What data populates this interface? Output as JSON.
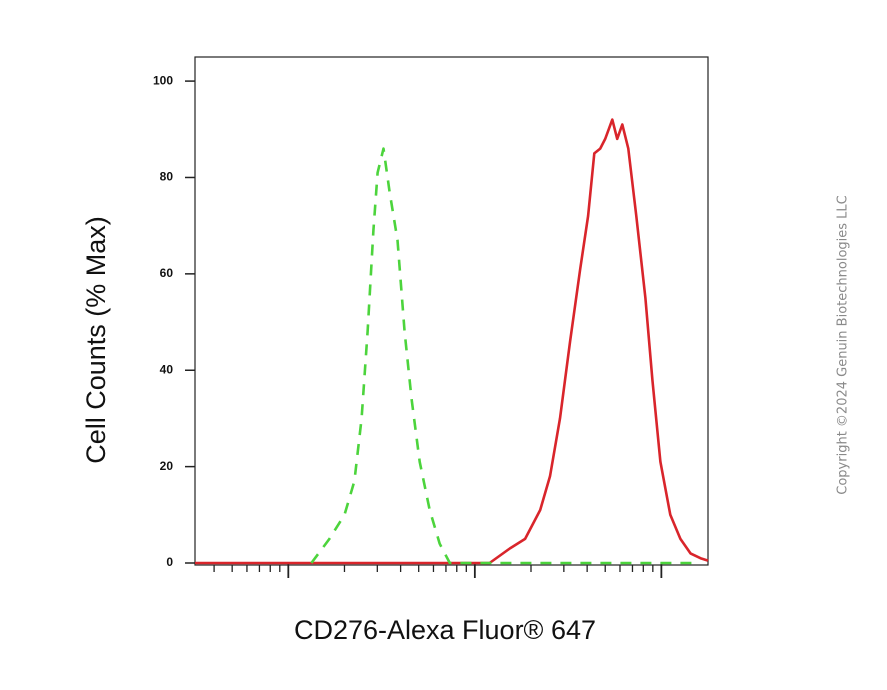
{
  "chart_data": {
    "type": "line",
    "ylabel": "Cell Counts (% Max)",
    "xlabel": "CD276-Alexa Fluor® 647",
    "xscale": "log",
    "xlim": [
      316,
      177828
    ],
    "xticks": [
      1000,
      10000,
      100000
    ],
    "xtick_labels": false,
    "minor_xticks": [
      400,
      500,
      600,
      700,
      800,
      900,
      2000,
      3000,
      4000,
      5000,
      6000,
      7000,
      8000,
      9000,
      20000,
      30000,
      40000,
      50000,
      60000,
      70000,
      80000,
      90000
    ],
    "ylim": [
      0,
      105
    ],
    "yticks": [
      0,
      20,
      40,
      60,
      80,
      100
    ],
    "series": [
      {
        "color": "#d9252b",
        "style": "solid",
        "x": [
          316,
          12000,
          15400,
          18600,
          22400,
          25300,
          28600,
          32400,
          36700,
          40500,
          43700,
          47000,
          50000,
          54600,
          58000,
          61700,
          66500,
          73400,
          82100,
          89500,
          98800,
          111700,
          126500,
          143200,
          162200,
          177828
        ],
        "values": [
          0,
          0,
          3,
          5,
          11,
          18,
          30,
          46,
          61,
          72,
          85,
          86,
          88,
          92,
          88,
          91,
          86,
          72,
          55,
          38,
          21,
          10,
          5,
          2,
          1,
          0.5
        ]
      },
      {
        "color": "#4cd43c",
        "style": "dashed",
        "x": [
          1330,
          1660,
          2000,
          2260,
          2470,
          2660,
          2860,
          3010,
          3240,
          3490,
          3850,
          4200,
          4580,
          5060,
          5730,
          6480,
          7340,
          162000
        ],
        "values": [
          0,
          5,
          10,
          17,
          30,
          48,
          69,
          81,
          86,
          77,
          67,
          48,
          34,
          21,
          11,
          4,
          0,
          0
        ]
      }
    ]
  },
  "copyright": "Copyright ©2024 Genuin Biotechnologies LLC"
}
